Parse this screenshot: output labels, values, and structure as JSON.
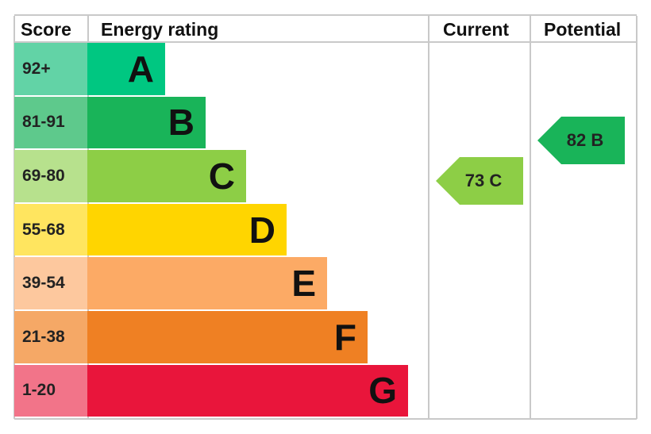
{
  "header": {
    "score": "Score",
    "rating": "Energy rating",
    "current": "Current",
    "potential": "Potential"
  },
  "bands": [
    {
      "score": "92+",
      "letter": "A",
      "color": "#00c781",
      "score_color": "#62d3a6"
    },
    {
      "score": "81-91",
      "letter": "B",
      "color": "#19b459",
      "score_color": "#5ec98c"
    },
    {
      "score": "69-80",
      "letter": "C",
      "color": "#8dce46",
      "score_color": "#b7e18d"
    },
    {
      "score": "55-68",
      "letter": "D",
      "color": "#ffd500",
      "score_color": "#ffe55f"
    },
    {
      "score": "39-54",
      "letter": "E",
      "color": "#fcaa65",
      "score_color": "#fdc89e"
    },
    {
      "score": "21-38",
      "letter": "F",
      "color": "#ef8023",
      "score_color": "#f5a866"
    },
    {
      "score": "1-20",
      "letter": "G",
      "color": "#e9153b",
      "score_color": "#f27489"
    }
  ],
  "current": {
    "label": "73 C",
    "color": "#8dce46"
  },
  "potential": {
    "label": "82 B",
    "color": "#19b459"
  }
}
